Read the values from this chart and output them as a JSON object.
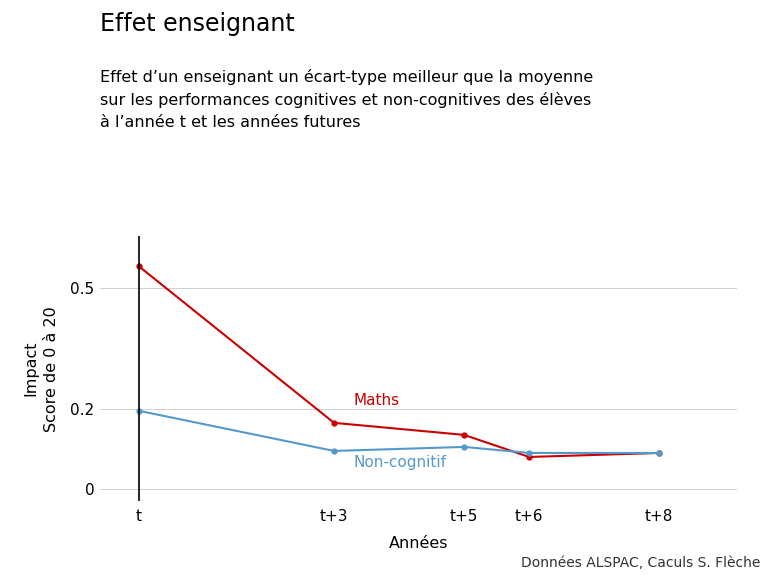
{
  "title": "Effet enseignant",
  "subtitle": "Effet d’un enseignant un écart-type meilleur que la moyenne\nsur les performances cognitives et non-cognitives des élèves\nà l’année t et les années futures",
  "xlabel": "Années",
  "ylabel": "Impact\nScore de 0 à 20",
  "x_labels": [
    "t",
    "t+3",
    "t+5",
    "t+6",
    "t+8"
  ],
  "x_positions": [
    0,
    3,
    5,
    6,
    8
  ],
  "maths_values": [
    0.555,
    0.165,
    0.135,
    0.08,
    0.09
  ],
  "noncog_values": [
    0.195,
    0.095,
    0.105,
    0.09,
    0.09
  ],
  "maths_color": "#cc0000",
  "noncog_color": "#5599cc",
  "maths_label": "Maths",
  "noncog_label": "Non-cognitif",
  "ylim": [
    -0.03,
    0.63
  ],
  "yticks": [
    0.0,
    0.2,
    0.5
  ],
  "ytick_labels": [
    "0",
    "0.2",
    "0.5"
  ],
  "source_text": "Données ALSPAC, Caculs S. Flèche",
  "background_color": "#ffffff",
  "grid_color": "#d0d0d0",
  "title_fontsize": 17,
  "subtitle_fontsize": 11.5,
  "label_fontsize": 11.5,
  "tick_fontsize": 11,
  "annotation_fontsize": 11,
  "source_fontsize": 10
}
